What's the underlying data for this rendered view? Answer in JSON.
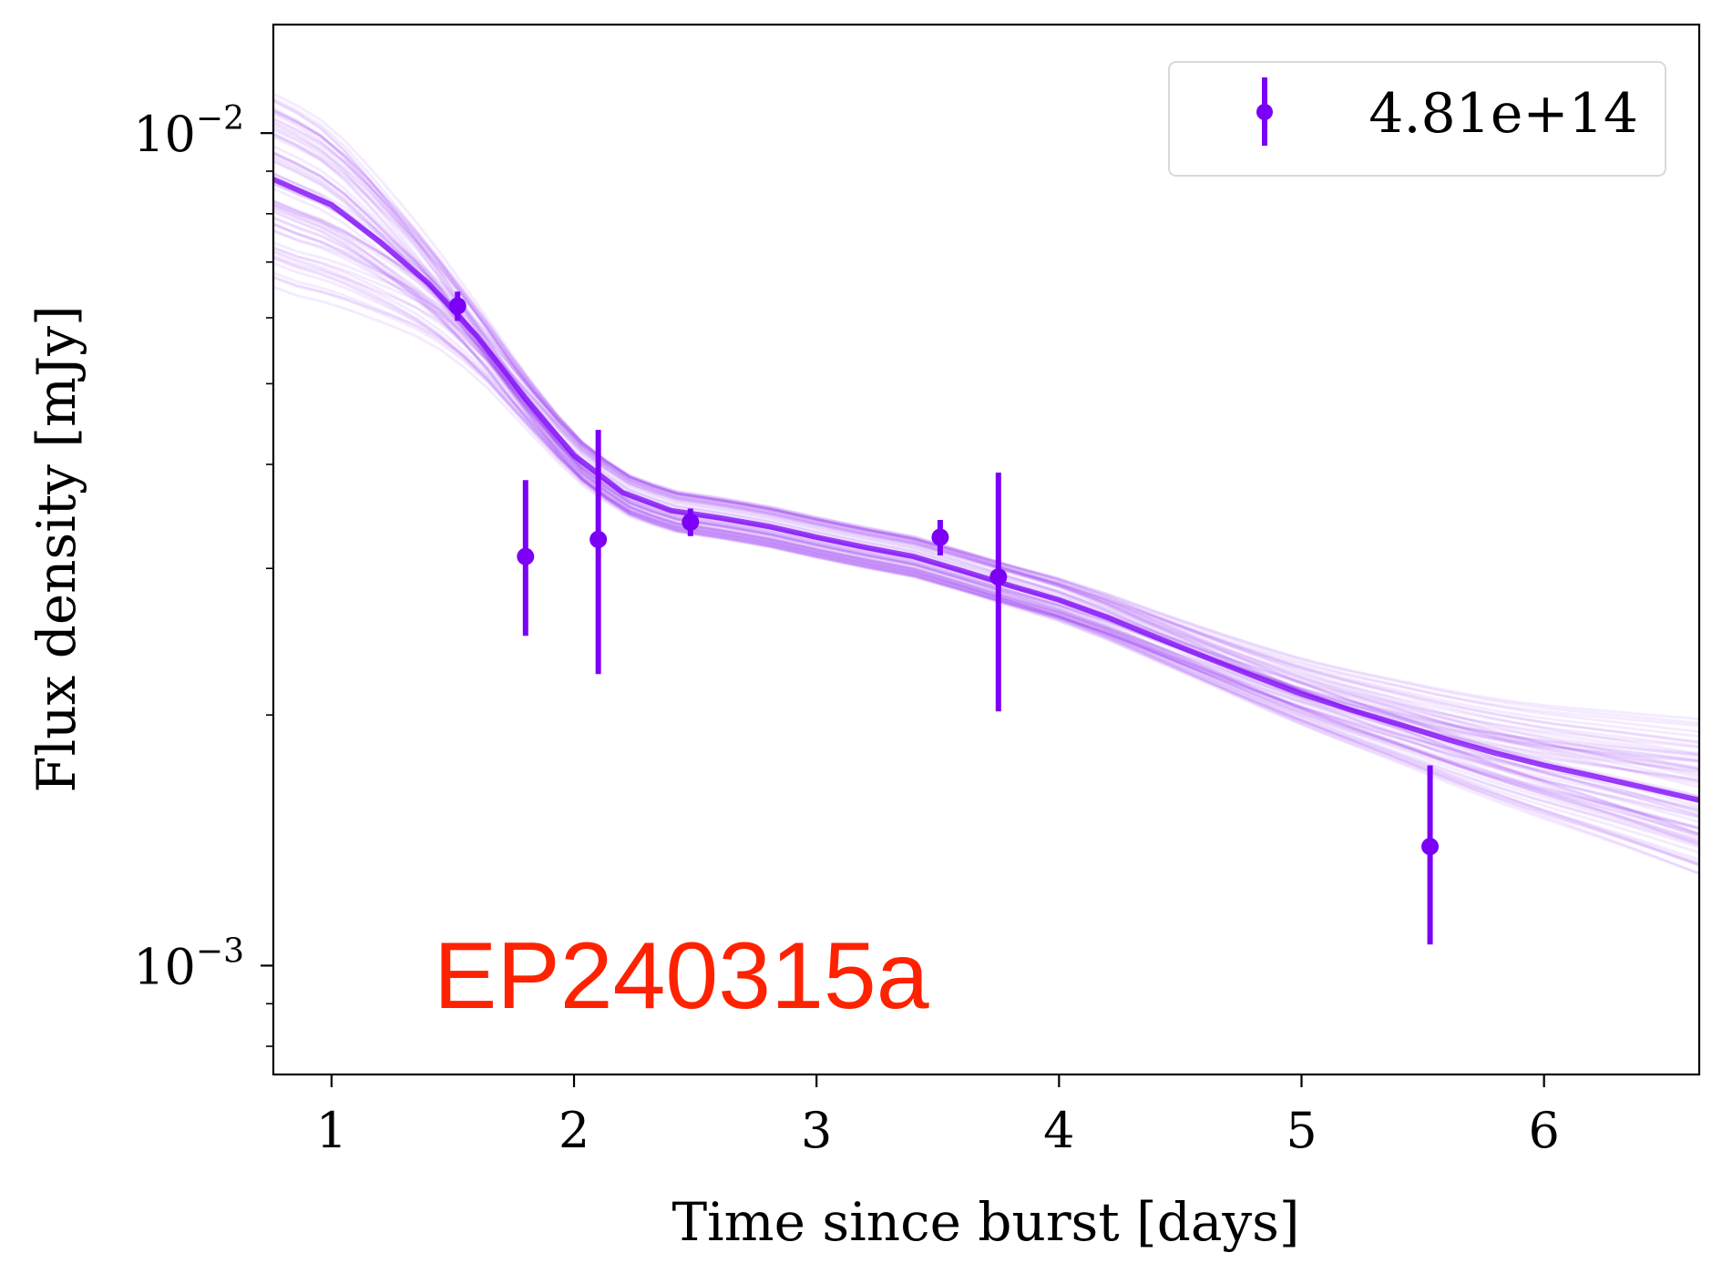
{
  "chart_data": {
    "type": "scatter",
    "xlabel": "Time since burst [days]",
    "ylabel": "Flux density [mJy]",
    "xlim": [
      0.76,
      6.64
    ],
    "ylim": [
      0.00074,
      0.0135
    ],
    "yscale": "log",
    "x_ticks": [
      1,
      2,
      3,
      4,
      5,
      6
    ],
    "x_tick_labels": [
      "1",
      "2",
      "3",
      "4",
      "5",
      "6"
    ],
    "y_major_ticks": [
      0.001,
      0.01
    ],
    "y_tick_labels": [
      {
        "base": "10",
        "exp": "−3"
      },
      {
        "base": "10",
        "exp": "−2"
      }
    ],
    "legend": {
      "position": "top-right",
      "entries": [
        {
          "label": "4.81e+14",
          "color": "#7b00f5"
        }
      ]
    },
    "annotation": {
      "text": "EP240315a",
      "color": "#ff2200"
    },
    "series": [
      {
        "name": "4.81e+14",
        "color": "#7b00f5",
        "points": [
          {
            "x": 1.52,
            "y": 0.0062,
            "err_low": 0.00025,
            "err_high": 0.00025
          },
          {
            "x": 1.8,
            "y": 0.0031,
            "err_low": 0.00061,
            "err_high": 0.00073
          },
          {
            "x": 2.1,
            "y": 0.00325,
            "err_low": 0.00101,
            "err_high": 0.00115
          },
          {
            "x": 2.48,
            "y": 0.00341,
            "err_low": 0.00013,
            "err_high": 0.00013
          },
          {
            "x": 3.51,
            "y": 0.00327,
            "err_low": 0.00016,
            "err_high": 0.00016
          },
          {
            "x": 3.75,
            "y": 0.00293,
            "err_low": 0.00091,
            "err_high": 0.00098
          },
          {
            "x": 5.53,
            "y": 0.00139,
            "err_low": 0.00033,
            "err_high": 0.00035
          }
        ]
      }
    ],
    "model_median": {
      "color": "#7b00f5",
      "x": [
        0.76,
        1.0,
        1.2,
        1.4,
        1.6,
        1.8,
        2.0,
        2.2,
        2.4,
        2.6,
        2.8,
        3.0,
        3.2,
        3.4,
        3.6,
        3.8,
        4.0,
        4.2,
        4.4,
        4.6,
        4.8,
        5.0,
        5.2,
        5.4,
        5.6,
        5.8,
        6.0,
        6.2,
        6.4,
        6.64
      ],
      "y": [
        0.0088,
        0.0082,
        0.0074,
        0.0066,
        0.0057,
        0.0048,
        0.0041,
        0.0037,
        0.00352,
        0.00345,
        0.00337,
        0.00327,
        0.00318,
        0.0031,
        0.00298,
        0.00286,
        0.00275,
        0.00262,
        0.00248,
        0.00235,
        0.00223,
        0.00212,
        0.00203,
        0.00195,
        0.00187,
        0.0018,
        0.00174,
        0.00169,
        0.00164,
        0.00158
      ]
    },
    "model_samples": {
      "count": 70,
      "color": "#7b00f5",
      "opacity": 0.08
    }
  }
}
